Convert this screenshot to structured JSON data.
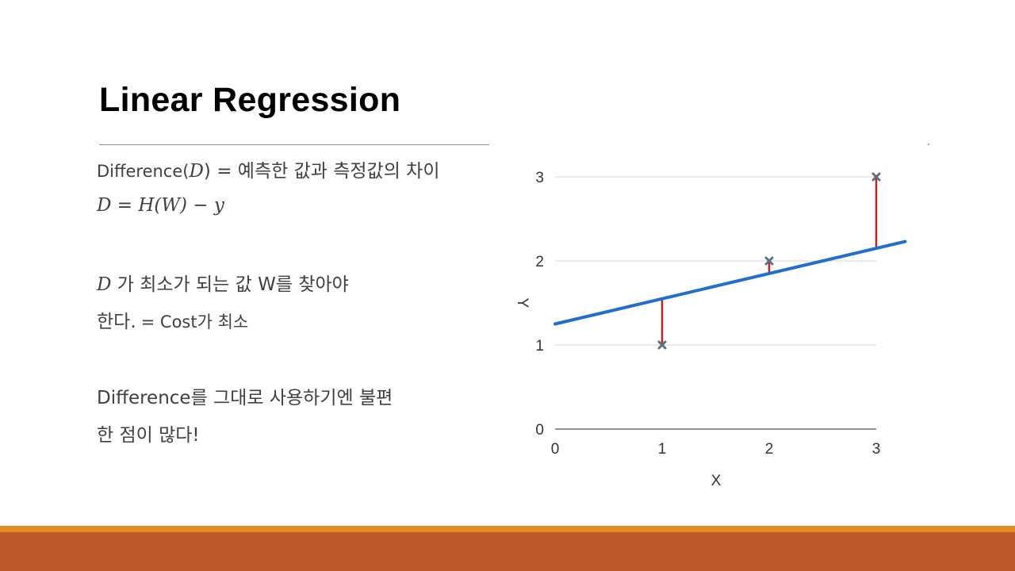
{
  "slide": {
    "title": "Linear Regression",
    "line1_pre": "Difference(",
    "line1_var": "D",
    "line1_post": ") = 예측한 값과 측정값의 차이",
    "eq": "D = H(W) − y",
    "line3_var": "D",
    "line3_text": " 가 최소가 되는 값 W를 찾아야",
    "line4_a": "한다.",
    "line4_b": "= Cost가 최소",
    "line5": "Difference를 그대로 사용하기엔 불편",
    "line6": "한 점이 많다!"
  },
  "colors": {
    "fit_line": "#1f6fd1",
    "residual": "#c0211a",
    "marker": "#5c6e80",
    "grid": "#d4d4d4",
    "accent_orange": "#e38c1f",
    "accent_rust": "#bd582c"
  },
  "chart_data": {
    "type": "scatter",
    "xlabel": "X",
    "ylabel": "Y",
    "xlim": [
      0,
      3
    ],
    "ylim": [
      0,
      3
    ],
    "xticks": [
      "0",
      "1",
      "2",
      "3"
    ],
    "yticks": [
      "0",
      "1",
      "2",
      "3"
    ],
    "grid": "horizontal",
    "points": [
      {
        "x": 1,
        "y": 1
      },
      {
        "x": 2,
        "y": 2
      },
      {
        "x": 3,
        "y": 3
      }
    ],
    "fit_line": {
      "slope": 0.3,
      "intercept": 1.25,
      "x_start": 0,
      "x_end": 3.27
    },
    "residuals": "vertical lines from each point to the fit line"
  }
}
